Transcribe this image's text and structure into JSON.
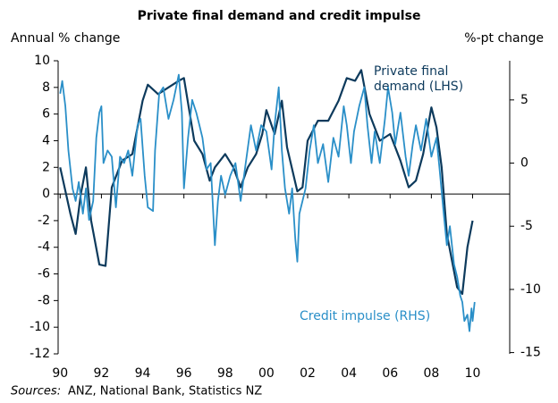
{
  "chart_data": {
    "type": "line",
    "title": "Private final demand and credit impulse",
    "ylabel": "Annual % change",
    "y2label": "%-pt change",
    "source_label": "Sources:",
    "source": "ANZ, National Bank, Statistics NZ",
    "xlim": [
      1989.9,
      2011.8
    ],
    "xticks": [
      {
        "value": 1990,
        "label": "90"
      },
      {
        "value": 1992,
        "label": "92"
      },
      {
        "value": 1994,
        "label": "94"
      },
      {
        "value": 1996,
        "label": "96"
      },
      {
        "value": 1998,
        "label": "98"
      },
      {
        "value": 2000,
        "label": "00"
      },
      {
        "value": 2002,
        "label": "02"
      },
      {
        "value": 2004,
        "label": "04"
      },
      {
        "value": 2006,
        "label": "06"
      },
      {
        "value": 2008,
        "label": "08"
      },
      {
        "value": 2010,
        "label": "10"
      }
    ],
    "ylim": [
      -12,
      10
    ],
    "yticks": [
      -12,
      -10,
      -8,
      -6,
      -4,
      -2,
      0,
      2,
      4,
      6,
      8,
      10
    ],
    "y2lim": [
      -15.1,
      8.1
    ],
    "y2ticks": [
      -15,
      -10,
      -5,
      0,
      5
    ],
    "series": [
      {
        "label": [
          "Private final",
          "demand (LHS)"
        ],
        "color": "#0d3a5c",
        "axis": "y",
        "x": [
          1990.0,
          1990.5,
          1990.75,
          1991.0,
          1991.25,
          1991.5,
          1991.9,
          1992.2,
          1992.5,
          1993.0,
          1993.5,
          1994.0,
          1994.25,
          1994.75,
          1995.25,
          1995.75,
          1996.0,
          1996.5,
          1996.9,
          1997.25,
          1997.5,
          1998.0,
          1998.4,
          1998.75,
          1999.1,
          1999.5,
          1999.8,
          2000.0,
          2000.4,
          2000.75,
          2001.0,
          2001.5,
          2001.75,
          2002.0,
          2002.5,
          2003.0,
          2003.5,
          2003.9,
          2004.3,
          2004.6,
          2005.0,
          2005.5,
          2006.0,
          2006.5,
          2006.9,
          2007.25,
          2007.6,
          2008.0,
          2008.25,
          2008.5,
          2008.75,
          2009.0,
          2009.25,
          2009.5,
          2009.75,
          2010.0
        ],
        "values": [
          2,
          -1.5,
          -3,
          0,
          2,
          -2,
          -5.3,
          -5.4,
          0.5,
          2.5,
          3,
          7,
          8.2,
          7.5,
          8,
          8.5,
          8.7,
          4,
          3,
          1,
          2,
          3,
          2,
          0.5,
          2,
          3,
          4.5,
          6.3,
          4.5,
          7,
          3.5,
          0.2,
          0.5,
          4,
          5.5,
          5.5,
          7,
          8.7,
          8.5,
          9.3,
          6,
          4,
          4.5,
          2.5,
          0.5,
          1,
          3,
          6.5,
          5,
          2,
          -3,
          -5,
          -7,
          -7.5,
          -4,
          -2
        ]
      },
      {
        "label": [
          "Credit impulse (RHS)"
        ],
        "color": "#2a8fc8",
        "axis": "y2",
        "x": [
          1990.0,
          1990.1,
          1990.25,
          1990.4,
          1990.6,
          1990.75,
          1990.9,
          1991.1,
          1991.25,
          1991.4,
          1991.6,
          1991.75,
          1991.9,
          1992.0,
          1992.1,
          1992.3,
          1992.5,
          1992.7,
          1992.9,
          1993.1,
          1993.3,
          1993.5,
          1993.75,
          1993.9,
          1994.1,
          1994.25,
          1994.5,
          1994.6,
          1994.8,
          1995.0,
          1995.25,
          1995.5,
          1995.75,
          1995.9,
          1996.0,
          1996.2,
          1996.4,
          1996.6,
          1996.75,
          1996.9,
          1997.1,
          1997.3,
          1997.5,
          1997.65,
          1997.8,
          1998.0,
          1998.25,
          1998.5,
          1998.75,
          1999.0,
          1999.25,
          1999.5,
          1999.75,
          2000.0,
          2000.25,
          2000.4,
          2000.6,
          2000.75,
          2000.9,
          2001.1,
          2001.25,
          2001.4,
          2001.5,
          2001.6,
          2001.75,
          2001.9,
          2002.1,
          2002.3,
          2002.5,
          2002.75,
          2003.0,
          2003.25,
          2003.5,
          2003.75,
          2003.9,
          2004.1,
          2004.25,
          2004.5,
          2004.75,
          2004.9,
          2005.1,
          2005.25,
          2005.5,
          2005.75,
          2005.9,
          2006.1,
          2006.25,
          2006.5,
          2006.75,
          2006.9,
          2007.1,
          2007.25,
          2007.5,
          2007.75,
          2008.0,
          2008.25,
          2008.4,
          2008.6,
          2008.75,
          2008.9,
          2009.1,
          2009.25,
          2009.4,
          2009.5,
          2009.6,
          2009.75,
          2009.85,
          2009.95,
          2010.0,
          2010.1
        ],
        "values": [
          5.5,
          6.5,
          4.5,
          1,
          -2,
          -3,
          -1.5,
          -4,
          -2,
          -4.5,
          -3,
          2,
          4,
          4.5,
          0,
          1,
          0.5,
          -3.5,
          0.5,
          0,
          1,
          -1,
          3,
          3.5,
          -1,
          -3.5,
          -3.8,
          1,
          5.5,
          6,
          3.5,
          5,
          7,
          4,
          -2,
          2,
          5,
          4,
          3,
          2,
          -0.5,
          0,
          -6.5,
          -3,
          -1,
          -2.5,
          -1,
          0,
          -3,
          0,
          3,
          1,
          3,
          2.5,
          -0.5,
          3,
          6,
          1,
          -2,
          -4,
          -2,
          -6,
          -7.8,
          -4,
          -3,
          -2,
          1,
          3,
          0,
          1.5,
          -1.5,
          2,
          0.5,
          4.5,
          3,
          0,
          2.5,
          4.5,
          6,
          3,
          0,
          2.5,
          0,
          3.5,
          6,
          4,
          1.5,
          4,
          0.5,
          -1,
          1.5,
          3,
          1,
          3.5,
          0.5,
          2,
          -0.5,
          -4,
          -6.5,
          -5,
          -8,
          -9,
          -10.5,
          -11,
          -12.5,
          -12,
          -13.3,
          -11.5,
          -12.5,
          -11
        ]
      }
    ]
  }
}
